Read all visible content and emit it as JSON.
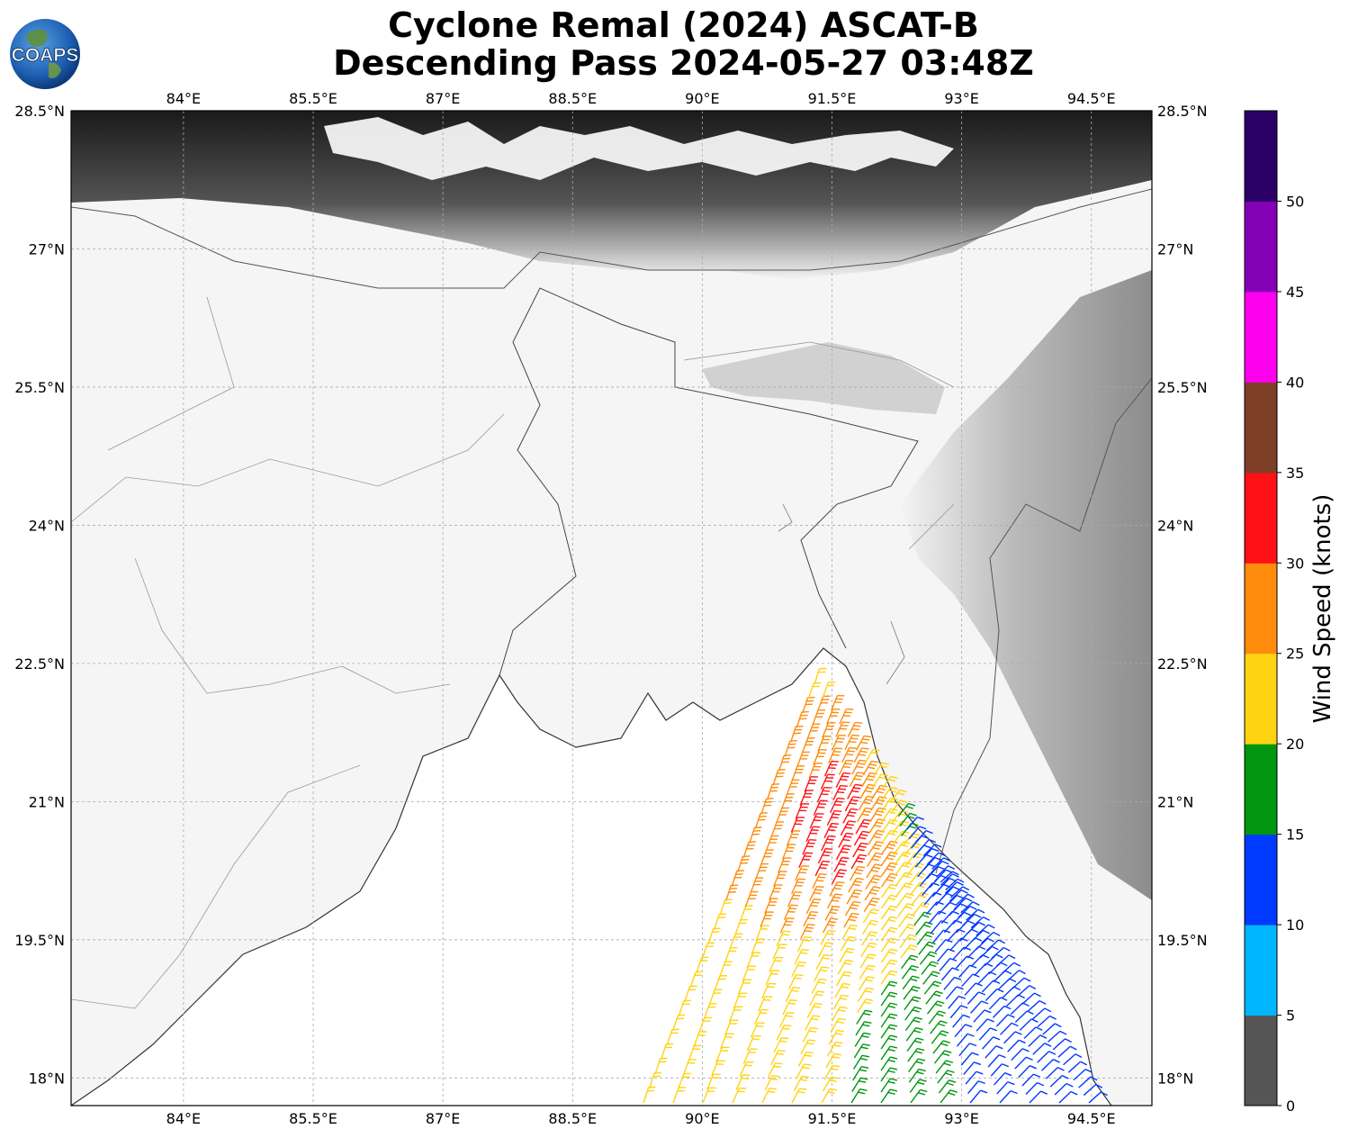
{
  "header": {
    "title_line1": "Cyclone Remal (2024) ASCAT-B",
    "title_line2": "Descending Pass 2024-05-27 03:48Z",
    "logo_text": "COAPS"
  },
  "map": {
    "lon_range": [
      82.7,
      95.2
    ],
    "lat_range": [
      17.7,
      28.5
    ],
    "lon_ticks": [
      "84°E",
      "85.5°E",
      "87°E",
      "88.5°E",
      "90°E",
      "91.5°E",
      "93°E",
      "94.5°E"
    ],
    "lon_tick_values": [
      84,
      85.5,
      87,
      88.5,
      90,
      91.5,
      93,
      94.5
    ],
    "lat_ticks": [
      "28.5°N",
      "27°N",
      "25.5°N",
      "24°N",
      "22.5°N",
      "21°N",
      "19.5°N",
      "18°N"
    ],
    "lat_tick_values": [
      28.5,
      27,
      25.5,
      24,
      22.5,
      21,
      19.5,
      18
    ],
    "gridlines": true
  },
  "colorbar": {
    "label": "Wind Speed (knots)",
    "ticks": [
      "0",
      "5",
      "10",
      "15",
      "20",
      "25",
      "30",
      "35",
      "40",
      "45",
      "50"
    ],
    "colors": [
      "#555555",
      "#00b7ff",
      "#0039ff",
      "#00960f",
      "#ffd311",
      "#ff8c0c",
      "#ff1115",
      "#7f3e28",
      "#ff00ee",
      "#8400b4",
      "#2a0066"
    ]
  }
}
